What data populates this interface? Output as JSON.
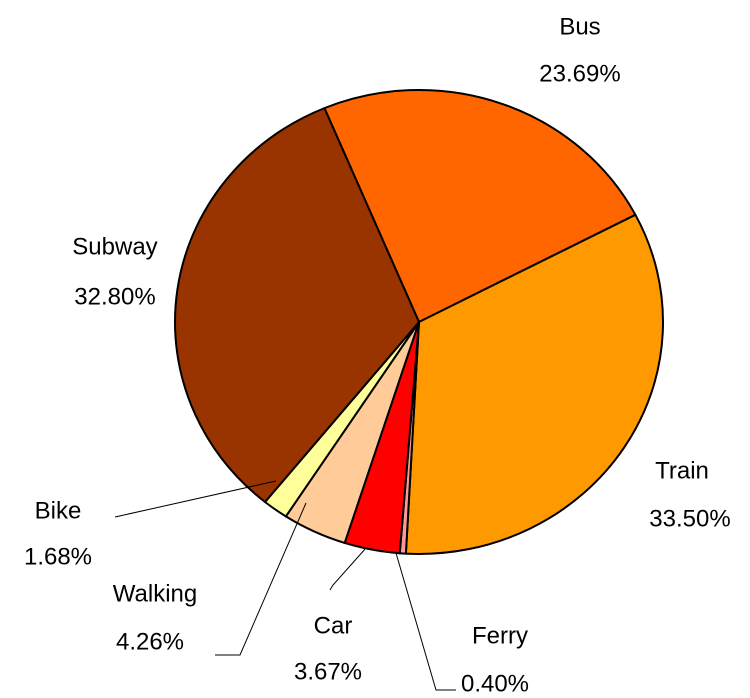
{
  "chart_data": {
    "type": "pie",
    "categories": [
      "Bus",
      "Train",
      "Ferry",
      "Car",
      "Walking",
      "Bike",
      "Subway"
    ],
    "values": [
      23.69,
      33.5,
      0.4,
      3.67,
      4.26,
      1.68,
      32.8
    ],
    "value_labels": [
      "23.69%",
      "33.50%",
      "0.40%",
      "3.67%",
      "4.26%",
      "1.68%",
      "32.80%"
    ],
    "colors": [
      "#ff6600",
      "#ff9900",
      "#ff9999",
      "#ff0000",
      "#ffcc99",
      "#ffff99",
      "#993300"
    ]
  }
}
